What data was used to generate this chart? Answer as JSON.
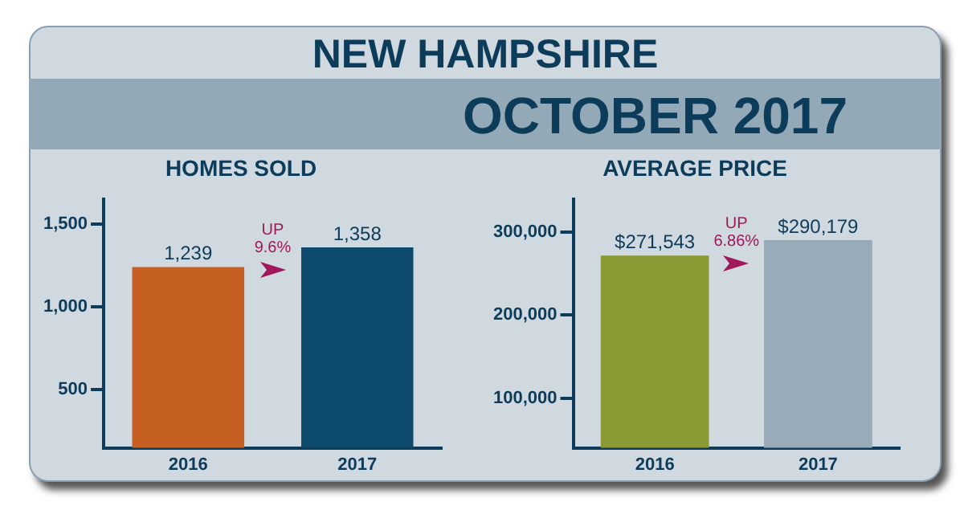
{
  "chart_data": [
    {
      "type": "other",
      "title": "NEW HAMPSHIRE",
      "subtitle": "OCTOBER 2017"
    },
    {
      "type": "bar",
      "title": "HOMES SOLD",
      "categories": [
        "2016",
        "2017"
      ],
      "values": [
        1239,
        1358
      ],
      "colors": [
        "#c55f22",
        "#0d4a6b"
      ],
      "value_labels": [
        "1,239",
        "1,358"
      ],
      "ylim": [
        150,
        1650
      ],
      "yticks": [
        {
          "value": 500,
          "label": "500"
        },
        {
          "value": 1000,
          "label": "1,000"
        },
        {
          "value": 1500,
          "label": "1,500"
        }
      ],
      "grid": false,
      "legend": false,
      "annotations": [
        "UP 9.6%"
      ]
    },
    {
      "type": "bar",
      "title": "AVERAGE PRICE",
      "categories": [
        "2016",
        "2017"
      ],
      "values": [
        271543,
        290179
      ],
      "colors": [
        "#8a9a35",
        "#97abb9"
      ],
      "value_labels": [
        "$271,543",
        "$290,179"
      ],
      "ylim": [
        40000,
        340000
      ],
      "yticks": [
        {
          "value": 100000,
          "label": "100,000"
        },
        {
          "value": 200000,
          "label": "200,000"
        },
        {
          "value": 300000,
          "label": "300,000"
        }
      ],
      "grid": false,
      "legend": false,
      "annotations": [
        "UP 6.86%"
      ]
    }
  ]
}
